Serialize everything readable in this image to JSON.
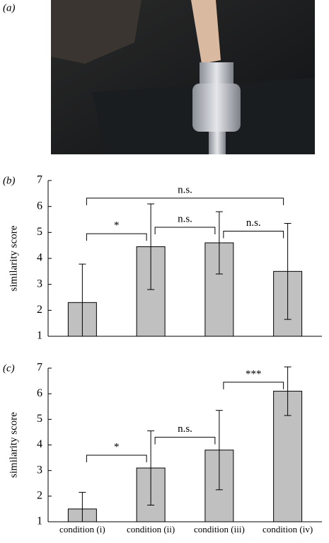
{
  "photo": {
    "label": "(a)"
  },
  "chart_data": [
    {
      "type": "bar",
      "panel_label": "(b)",
      "ylabel": "similarity score",
      "categories": [
        null,
        null,
        null,
        null
      ],
      "values": [
        2.3,
        4.45,
        4.6,
        3.5
      ],
      "errors": [
        1.48,
        1.65,
        1.2,
        1.85
      ],
      "color": "#c0c0c0",
      "ylim": [
        1,
        7
      ],
      "yticks": [
        1,
        2,
        3,
        4,
        5,
        6,
        7
      ],
      "annotations": [
        {
          "label": "n.s.",
          "from": 0,
          "to": 3,
          "y": 6.32
        },
        {
          "label": "*",
          "from": 0,
          "to": 1,
          "y": 4.95
        },
        {
          "label": "n.s.",
          "from": 1,
          "to": 2,
          "y": 5.2
        },
        {
          "label": "n.s.",
          "from": 2,
          "to": 3,
          "y": 5.05
        }
      ]
    },
    {
      "type": "bar",
      "panel_label": "(c)",
      "ylabel": "similarity score",
      "categories": [
        "condition (i)",
        "condition (ii)",
        "condition (iii)",
        "condition (iv)"
      ],
      "values": [
        1.5,
        3.1,
        3.8,
        6.1
      ],
      "errors": [
        0.65,
        1.45,
        1.55,
        0.95
      ],
      "color": "#c0c0c0",
      "ylim": [
        1,
        7
      ],
      "yticks": [
        1,
        2,
        3,
        4,
        5,
        6,
        7
      ],
      "annotations": [
        {
          "label": "*",
          "from": 0,
          "to": 1,
          "y": 3.6
        },
        {
          "label": "n.s.",
          "from": 1,
          "to": 2,
          "y": 4.3
        },
        {
          "label": "***",
          "from": 2,
          "to": 3,
          "y": 6.45
        }
      ]
    }
  ]
}
